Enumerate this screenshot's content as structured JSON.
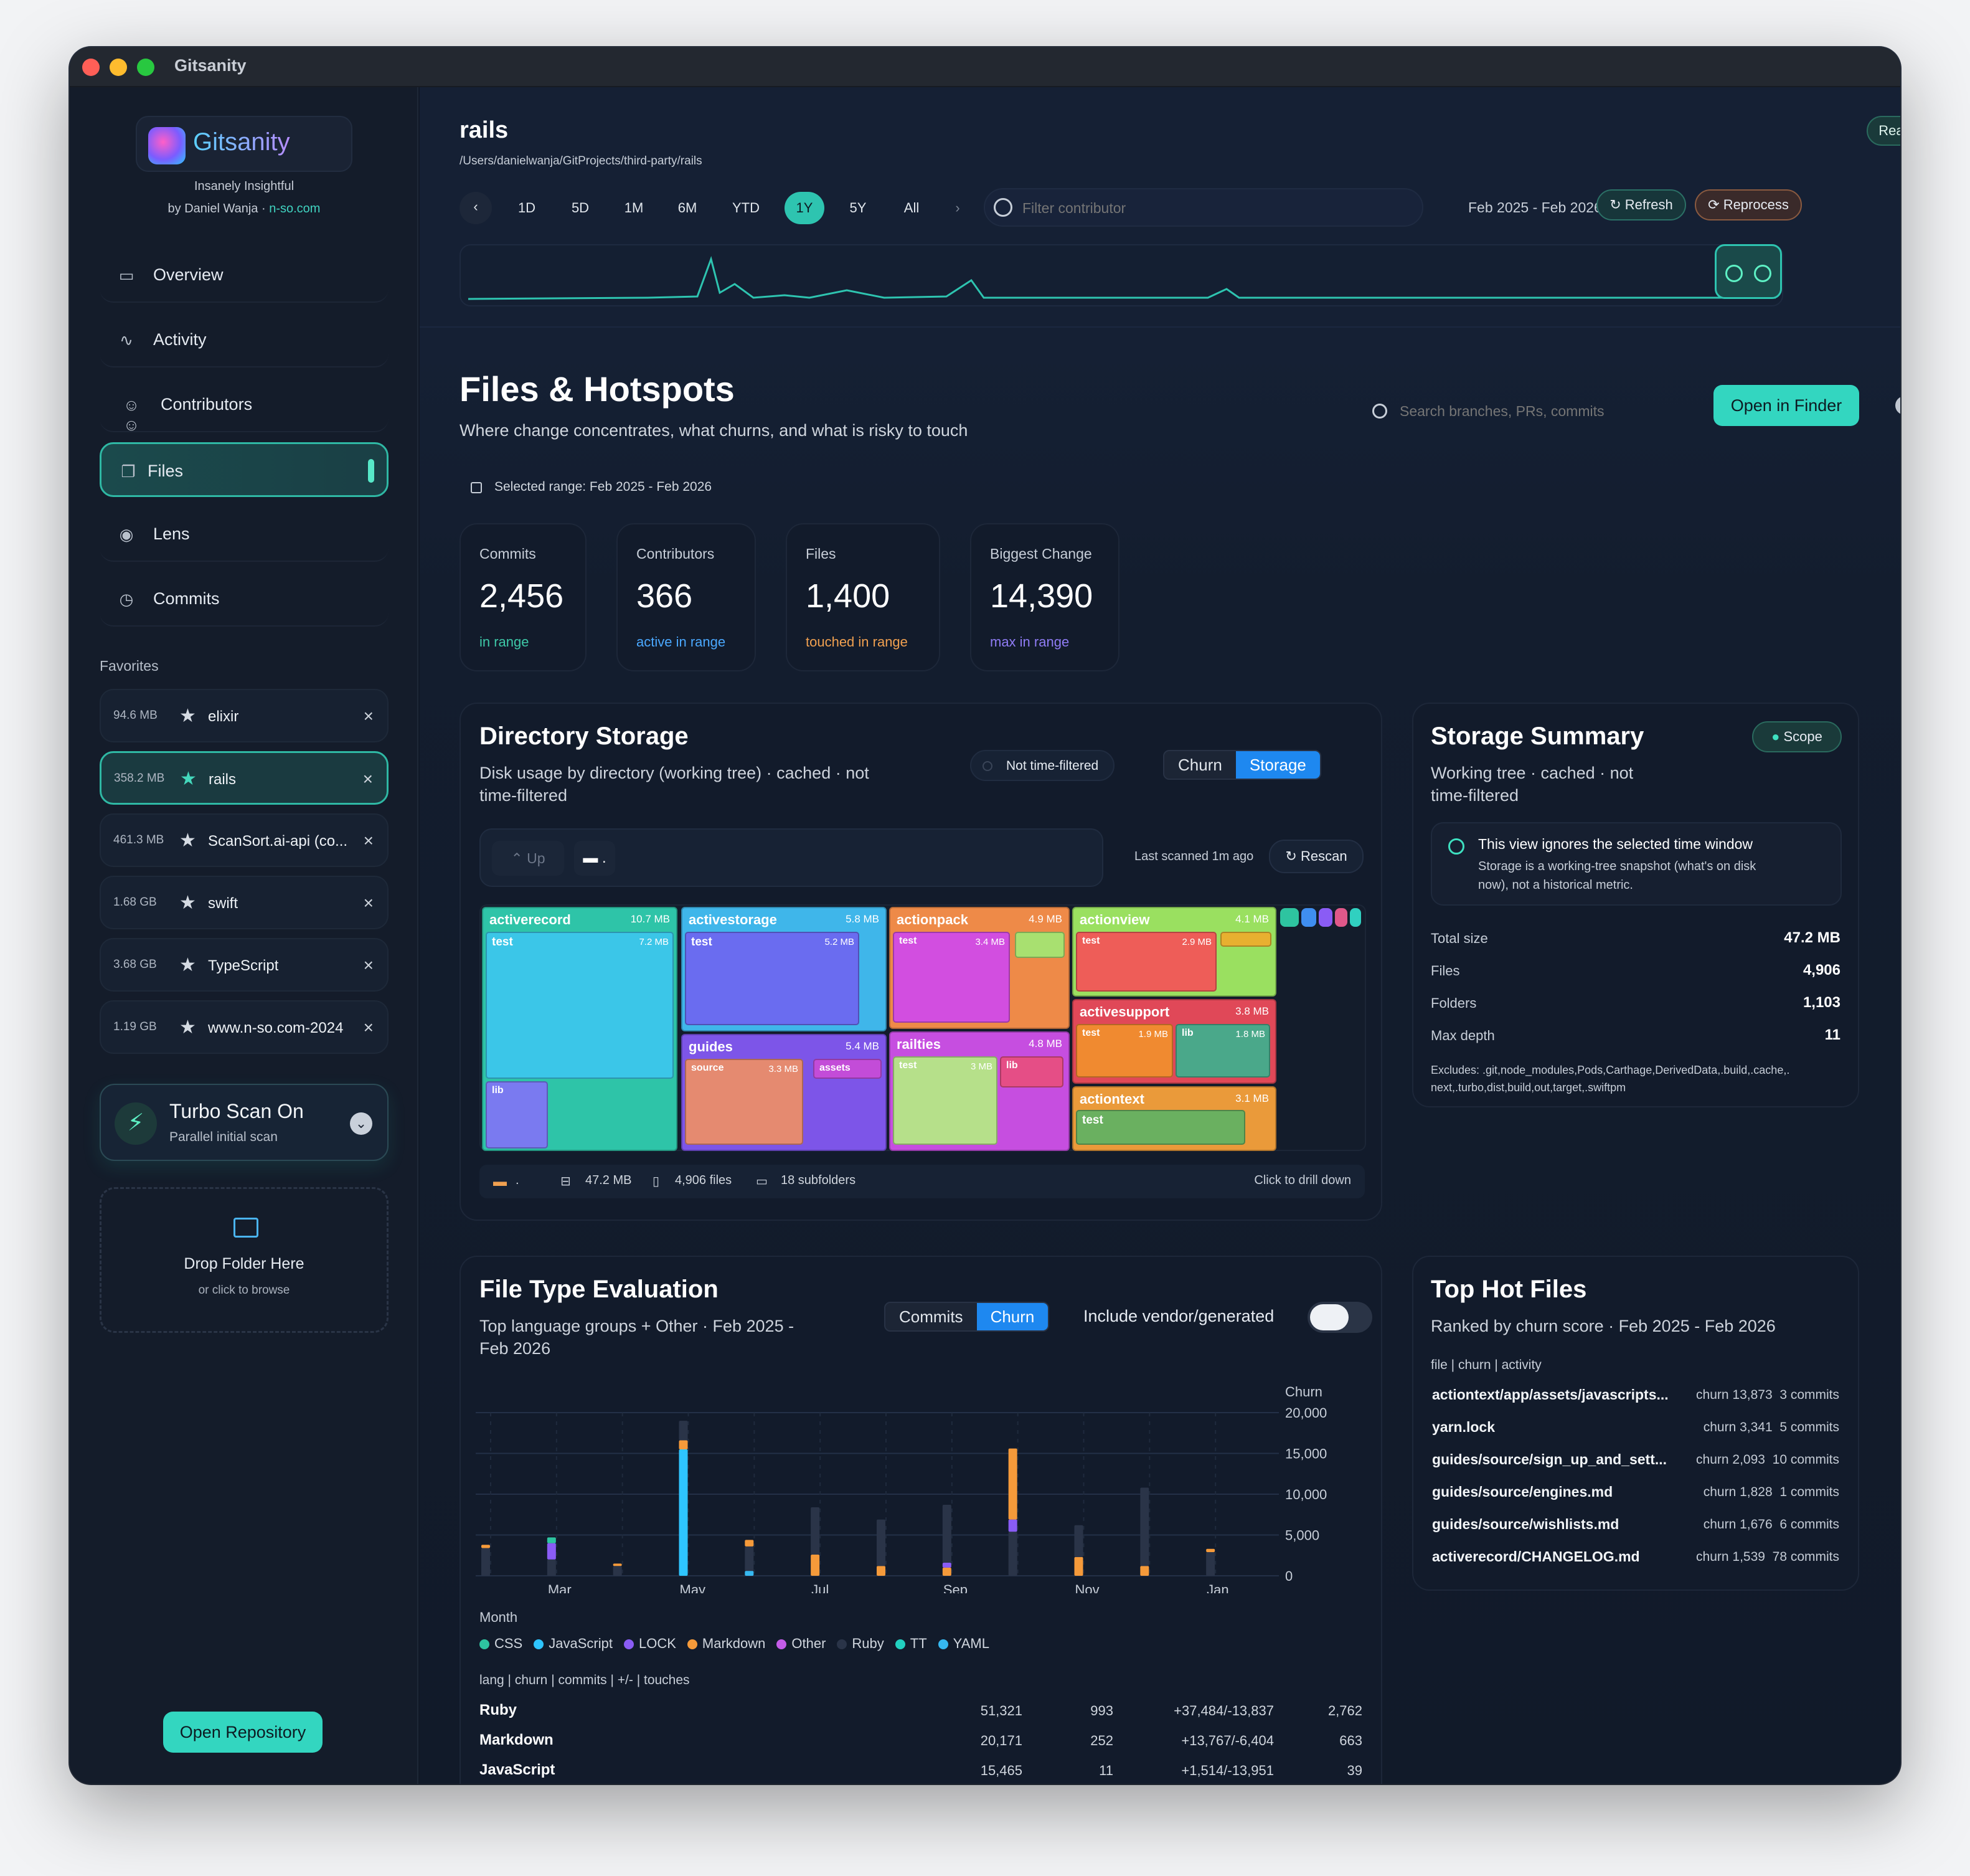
{
  "window": {
    "title": "Gitsanity"
  },
  "sidebar": {
    "brand": "Gitsanity",
    "tagline": "Insanely Insightful",
    "byline": "by Daniel Wanja · ",
    "site": "n-so.com",
    "nav": [
      {
        "label": "Overview",
        "icon": "overview-icon"
      },
      {
        "label": "Activity",
        "icon": "activity-icon"
      },
      {
        "label": "Contributors",
        "icon": "contributors-icon"
      },
      {
        "label": "Files",
        "icon": "files-icon"
      },
      {
        "label": "Lens",
        "icon": "eye-icon"
      },
      {
        "label": "Commits",
        "icon": "history-icon"
      }
    ],
    "favorites_title": "Favorites",
    "favorites": [
      {
        "size": "94.6 MB",
        "name": "elixir"
      },
      {
        "size": "358.2 MB",
        "name": "rails"
      },
      {
        "size": "461.3 MB",
        "name": "ScanSort.ai-api (co..."
      },
      {
        "size": "1.68 GB",
        "name": "swift"
      },
      {
        "size": "3.68 GB",
        "name": "TypeScript"
      },
      {
        "size": "1.19 GB",
        "name": "www.n-so.com-2024"
      }
    ],
    "turbo": {
      "title": "Turbo Scan On",
      "subtitle": "Parallel initial scan"
    },
    "drop": {
      "title": "Drop Folder Here",
      "subtitle": "or click to browse"
    },
    "open_repo": "Open Repository"
  },
  "header": {
    "repo": "rails",
    "path": "/Users/danielwanja/GitProjects/third-party/rails",
    "status": "Ready",
    "ranges": [
      "1D",
      "5D",
      "1M",
      "6M",
      "YTD",
      "1Y",
      "5Y",
      "All"
    ],
    "filter_placeholder": "Filter contributor",
    "range_label": "Feb 2025 - Feb 2026",
    "refresh": "Refresh",
    "reprocess": "Reprocess"
  },
  "page": {
    "title": "Files & Hotspots",
    "subtitle": "Where change concentrates, what churns, and what is risky to touch",
    "search_placeholder": "Search branches, PRs, commits",
    "open_finder": "Open in Finder",
    "help": "?",
    "selected_range": "Selected range: Feb 2025 - Feb 2026"
  },
  "stats": [
    {
      "label": "Commits",
      "value": "2,456",
      "note": "in range",
      "color": "#3ec9a8"
    },
    {
      "label": "Contributors",
      "value": "366",
      "note": "active in range",
      "color": "#4aa8ff"
    },
    {
      "label": "Files",
      "value": "1,400",
      "note": "touched in range",
      "color": "#f0a050"
    },
    {
      "label": "Biggest Change",
      "value": "14,390",
      "note": "max in range",
      "color": "#8f7cf5"
    }
  ],
  "directory": {
    "title": "Directory Storage",
    "subtitle1": "Disk usage by directory (working tree) · cached · not",
    "subtitle2": "time-filtered",
    "not_filtered": "Not time-filtered",
    "seg": [
      "Churn",
      "Storage"
    ],
    "up": "Up",
    "path": ".",
    "last_scanned": "Last scanned 1m ago",
    "rescan": "Rescan",
    "tiles": [
      {
        "name": "activerecord",
        "size": "10.7 MB",
        "sub": [
          {
            "name": "test",
            "size": "7.2 MB"
          },
          {
            "name": "lib",
            "size": ""
          }
        ]
      },
      {
        "name": "activestorage",
        "size": "5.8 MB",
        "sub": [
          {
            "name": "test",
            "size": "5.2 MB"
          }
        ]
      },
      {
        "name": "guides",
        "size": "5.4 MB",
        "sub": [
          {
            "name": "source",
            "size": "3.3 MB"
          },
          {
            "name": "assets",
            "size": ""
          }
        ]
      },
      {
        "name": "actionpack",
        "size": "4.9 MB",
        "sub": [
          {
            "name": "test",
            "size": "3.4 MB"
          }
        ]
      },
      {
        "name": "railties",
        "size": "4.8 MB",
        "sub": [
          {
            "name": "test",
            "size": "3 MB"
          },
          {
            "name": "lib",
            "size": ""
          }
        ]
      },
      {
        "name": "actionview",
        "size": "4.1 MB",
        "sub": [
          {
            "name": "test",
            "size": "2.9 MB"
          }
        ]
      },
      {
        "name": "activesupport",
        "size": "3.8 MB",
        "sub": [
          {
            "name": "test",
            "size": "1.9 MB"
          },
          {
            "name": "lib",
            "size": "1.8 MB"
          }
        ]
      },
      {
        "name": "actiontext",
        "size": "3.1 MB",
        "sub": [
          {
            "name": "test",
            "size": ""
          }
        ]
      }
    ],
    "footer": {
      "path": ".",
      "size": "47.2 MB",
      "files": "4,906 files",
      "folders": "18 subfolders",
      "hint": "Click to drill down"
    }
  },
  "storage": {
    "title": "Storage Summary",
    "scope": "Scope",
    "subtitle1": "Working tree · cached · not",
    "subtitle2": "time-filtered",
    "notice_title": "This view ignores the selected time window",
    "notice_body1": "Storage is a working-tree snapshot (what's on disk",
    "notice_body2": "now), not a historical metric.",
    "rows": [
      {
        "k": "Total size",
        "v": "47.2 MB"
      },
      {
        "k": "Files",
        "v": "4,906"
      },
      {
        "k": "Folders",
        "v": "1,103"
      },
      {
        "k": "Max depth",
        "v": "11"
      }
    ],
    "excludes1": "Excludes: .git,node_modules,Pods,Carthage,DerivedData,.build,.cache,.",
    "excludes2": "next,.turbo,dist,build,out,target,.swiftpm"
  },
  "filetype": {
    "title": "File Type Evaluation",
    "subtitle1": "Top language groups + Other · Feb 2025 -",
    "subtitle2": "Feb 2026",
    "seg": [
      "Commits",
      "Churn"
    ],
    "toggle_label": "Include vendor/generated",
    "table_header": "lang | churn | commits | +/- | touches",
    "table": [
      {
        "lang": "Ruby",
        "churn": "51,321",
        "commits": "993",
        "delta": "+37,484/-13,837",
        "touches": "2,762"
      },
      {
        "lang": "Markdown",
        "churn": "20,171",
        "commits": "252",
        "delta": "+13,767/-6,404",
        "touches": "663"
      },
      {
        "lang": "JavaScript",
        "churn": "15,465",
        "commits": "11",
        "delta": "+1,514/-13,951",
        "touches": "39"
      }
    ]
  },
  "chart_data": {
    "type": "bar",
    "stacked": true,
    "ylabel": "Churn",
    "xlabel": "Month",
    "ylim": [
      0,
      20000
    ],
    "yticks": [
      "20,000",
      "15,000",
      "10,000",
      "5,000",
      "0"
    ],
    "xticks": [
      "Mar",
      "May",
      "Jul",
      "Sep",
      "Nov",
      "Jan"
    ],
    "legend": [
      {
        "name": "CSS",
        "color": "#2ec4a0"
      },
      {
        "name": "JavaScript",
        "color": "#2ec5ff"
      },
      {
        "name": "LOCK",
        "color": "#8a5cf5"
      },
      {
        "name": "Markdown",
        "color": "#f59a3a"
      },
      {
        "name": "Other",
        "color": "#c45ce8"
      },
      {
        "name": "Ruby",
        "color": "#2a3448"
      },
      {
        "name": "TT",
        "color": "#22d0c0"
      },
      {
        "name": "YAML",
        "color": "#36b8f0"
      }
    ],
    "bars": [
      {
        "segments": [
          {
            "s": "Ruby",
            "v": 3400
          },
          {
            "s": "Markdown",
            "v": 400
          }
        ]
      },
      {
        "segments": [
          {
            "s": "Ruby",
            "v": 2000
          },
          {
            "s": "LOCK",
            "v": 2000
          },
          {
            "s": "CSS",
            "v": 700
          }
        ]
      },
      {
        "segments": [
          {
            "s": "Ruby",
            "v": 1200
          },
          {
            "s": "Markdown",
            "v": 300
          }
        ]
      },
      {
        "segments": [
          {
            "s": "JavaScript",
            "v": 15500
          },
          {
            "s": "Markdown",
            "v": 1100
          },
          {
            "s": "Ruby",
            "v": 2400
          }
        ]
      },
      {
        "segments": [
          {
            "s": "YAML",
            "v": 600
          },
          {
            "s": "Ruby",
            "v": 3000
          },
          {
            "s": "Markdown",
            "v": 800
          }
        ]
      },
      {
        "segments": [
          {
            "s": "Markdown",
            "v": 2600
          },
          {
            "s": "Ruby",
            "v": 5800
          }
        ]
      },
      {
        "segments": [
          {
            "s": "Markdown",
            "v": 1200
          },
          {
            "s": "Ruby",
            "v": 5700
          }
        ]
      },
      {
        "segments": [
          {
            "s": "Markdown",
            "v": 1000
          },
          {
            "s": "LOCK",
            "v": 600
          },
          {
            "s": "Ruby",
            "v": 7100
          }
        ]
      },
      {
        "segments": [
          {
            "s": "Ruby",
            "v": 5400
          },
          {
            "s": "LOCK",
            "v": 1500
          },
          {
            "s": "Markdown",
            "v": 8700
          }
        ]
      },
      {
        "segments": [
          {
            "s": "Markdown",
            "v": 2300
          },
          {
            "s": "Ruby",
            "v": 3900
          }
        ]
      },
      {
        "segments": [
          {
            "s": "Markdown",
            "v": 1200
          },
          {
            "s": "Ruby",
            "v": 9600
          }
        ]
      },
      {
        "segments": [
          {
            "s": "Ruby",
            "v": 2900
          },
          {
            "s": "Markdown",
            "v": 400
          }
        ]
      }
    ]
  },
  "hotfiles": {
    "title": "Top Hot Files",
    "subtitle": "Ranked by churn score · Feb 2025 - Feb 2026",
    "header": "file | churn | activity",
    "items": [
      {
        "file": "actiontext/app/assets/javascripts...",
        "churn": "churn 13,873",
        "commits": "3 commits"
      },
      {
        "file": "yarn.lock",
        "churn": "churn 3,341",
        "commits": "5 commits"
      },
      {
        "file": "guides/source/sign_up_and_sett...",
        "churn": "churn 2,093",
        "commits": "10 commits"
      },
      {
        "file": "guides/source/engines.md",
        "churn": "churn 1,828",
        "commits": "1 commits"
      },
      {
        "file": "guides/source/wishlists.md",
        "churn": "churn 1,676",
        "commits": "6 commits"
      },
      {
        "file": "activerecord/CHANGELOG.md",
        "churn": "churn 1,539",
        "commits": "78 commits"
      }
    ]
  }
}
